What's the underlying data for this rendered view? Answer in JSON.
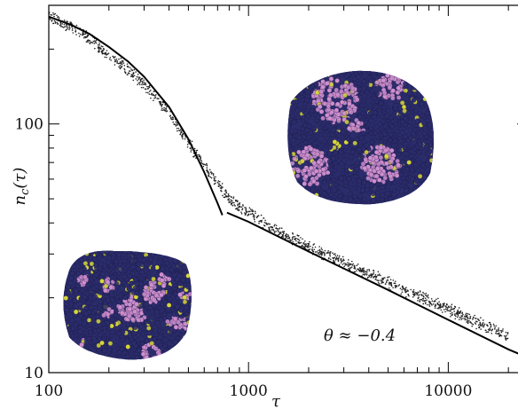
{
  "chart_data": {
    "type": "scatter",
    "title": "",
    "xlabel": "τ",
    "ylabel": "n_c(τ)",
    "ylabel_parts": {
      "main": "n",
      "sub": "c",
      "arg": "(τ)"
    },
    "x_scale": "log",
    "y_scale": "log",
    "xlim": [
      100,
      25000
    ],
    "ylim": [
      10,
      300
    ],
    "x_ticks": [
      100,
      1000,
      10000
    ],
    "x_tick_labels": [
      "100",
      "1000",
      "10000"
    ],
    "y_ticks": [
      10,
      100
    ],
    "y_tick_labels": [
      "10",
      "100"
    ],
    "grid": false,
    "annotation": "θ ≈ −0.4",
    "series": [
      {
        "kind": "scatter-band",
        "points": [
          [
            100,
            270
          ],
          [
            150,
            230
          ],
          [
            200,
            190
          ],
          [
            300,
            145
          ],
          [
            400,
            110
          ],
          [
            500,
            84
          ],
          [
            600,
            68
          ],
          [
            700,
            58
          ],
          [
            800,
            50
          ],
          [
            1000,
            44
          ],
          [
            1500,
            36
          ],
          [
            2000,
            32
          ],
          [
            3000,
            27.5
          ],
          [
            5000,
            23
          ],
          [
            8000,
            19.5
          ],
          [
            10000,
            18
          ],
          [
            15000,
            15.5
          ],
          [
            20000,
            14.2
          ]
        ]
      },
      {
        "kind": "fit-line",
        "points": [
          [
            100,
            270
          ],
          [
            130,
            250
          ],
          [
            160,
            230
          ],
          [
            200,
            204
          ],
          [
            250,
            178
          ],
          [
            300,
            155
          ],
          [
            400,
            117
          ],
          [
            500,
            87
          ],
          [
            600,
            64
          ],
          [
            700,
            48
          ],
          [
            740,
            43
          ]
        ]
      },
      {
        "kind": "power-law-fit",
        "points": [
          [
            780,
            44
          ],
          [
            1000,
            40.4
          ],
          [
            2000,
            30.7
          ],
          [
            5000,
            21.5
          ],
          [
            10000,
            16.3
          ],
          [
            20000,
            12.4
          ],
          [
            25000,
            11.5
          ]
        ]
      }
    ],
    "insets": [
      {
        "name": "cluster-inset-large",
        "colors": {
          "dark": "#2b2c6b",
          "pink": "#cf8fcf",
          "yellow": "#d6d63a"
        }
      },
      {
        "name": "cluster-inset-small",
        "colors": {
          "dark": "#2b2c6b",
          "pink": "#cf8fcf",
          "yellow": "#d6d63a"
        }
      }
    ]
  }
}
